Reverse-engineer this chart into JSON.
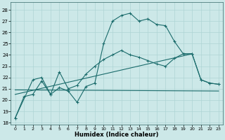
{
  "xlabel": "Humidex (Indice chaleur)",
  "xlim": [
    -0.5,
    23.5
  ],
  "ylim": [
    17.8,
    28.7
  ],
  "yticks": [
    18,
    19,
    20,
    21,
    22,
    23,
    24,
    25,
    26,
    27,
    28
  ],
  "xticks": [
    0,
    1,
    2,
    3,
    4,
    5,
    6,
    7,
    8,
    9,
    10,
    11,
    12,
    13,
    14,
    15,
    16,
    17,
    18,
    19,
    20,
    21,
    22,
    23
  ],
  "bg_color": "#cce8e8",
  "grid_color": "#aed4d4",
  "line_color": "#1a6b6b",
  "curve1_x": [
    0,
    1,
    2,
    3,
    4,
    5,
    6,
    7,
    8,
    9,
    10,
    11,
    12,
    13,
    14,
    15,
    16,
    17,
    18,
    19,
    20,
    21,
    22,
    23
  ],
  "curve1_y": [
    18.4,
    20.3,
    20.5,
    21.7,
    20.5,
    21.1,
    20.8,
    19.8,
    21.2,
    21.5,
    25.0,
    27.0,
    27.5,
    27.7,
    27.0,
    27.2,
    26.7,
    26.6,
    25.2,
    24.1,
    24.1,
    21.8,
    21.5,
    21.4
  ],
  "curve2_x": [
    0,
    2,
    3,
    4,
    5,
    6,
    7,
    8,
    9,
    10,
    11,
    12,
    13,
    14,
    15,
    16,
    17,
    18,
    19,
    20,
    21,
    22,
    23
  ],
  "curve2_y": [
    18.4,
    21.8,
    22.0,
    20.5,
    22.5,
    21.0,
    21.3,
    22.3,
    23.0,
    23.6,
    24.0,
    24.4,
    24.0,
    23.8,
    23.5,
    23.2,
    23.0,
    23.7,
    24.1,
    24.1,
    21.8,
    21.5,
    21.4
  ],
  "line3_x": [
    0,
    20
  ],
  "line3_y": [
    20.5,
    24.1
  ],
  "line4_x": [
    0,
    23
  ],
  "line4_y": [
    20.9,
    20.8
  ]
}
